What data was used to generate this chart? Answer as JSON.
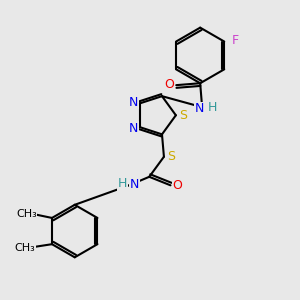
{
  "bg_color": "#e8e8e8",
  "bond_color": "#000000",
  "bond_width": 1.5,
  "figsize": [
    3.0,
    3.0
  ],
  "dpi": 100,
  "atom_colors": {
    "N": "#0000ee",
    "O": "#ee0000",
    "S": "#ccaa00",
    "F": "#cc44cc",
    "H": "#339999",
    "C": "#000000"
  },
  "font_size": 8.5
}
